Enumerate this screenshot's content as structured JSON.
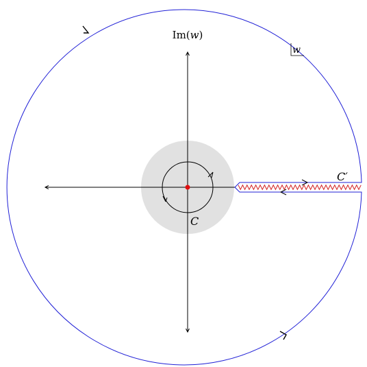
{
  "axis_label_im_prefix": "Im(",
  "axis_label_im_var": "w",
  "axis_label_im_suffix": ")",
  "plane_label": "w",
  "contour_small_label": "C",
  "contour_large_label": "C′",
  "colors": {
    "axis": "#000000",
    "large_contour": "#1f1fd6",
    "small_contour": "#000000",
    "disk_fill": "#e1e1e1",
    "branch_cut": "#d22020",
    "origin_point": "#e01010"
  },
  "elements": [
    "imaginary-axis",
    "real-axis",
    "shaded-disk",
    "small-contour-c",
    "large-contour-c-prime",
    "branch-cut",
    "origin-point"
  ]
}
